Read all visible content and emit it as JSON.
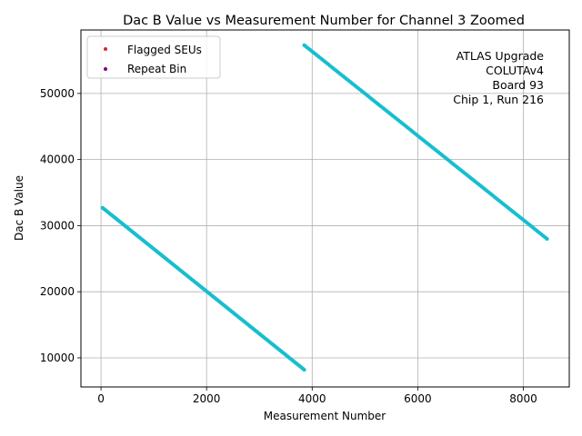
{
  "chart_data": {
    "type": "scatter",
    "title": "Dac B Value vs Measurement Number for Channel 3 Zoomed",
    "xlabel": "Measurement Number",
    "ylabel": "Dac B Value",
    "xlim": [
      -380,
      8870
    ],
    "ylim": [
      5600,
      59600
    ],
    "xticks": [
      0,
      2000,
      4000,
      6000,
      8000
    ],
    "yticks": [
      10000,
      20000,
      30000,
      40000,
      50000
    ],
    "grid": true,
    "legend_position": "top-left",
    "legend": [
      {
        "label": "Flagged SEUs",
        "color": "#d62728"
      },
      {
        "label": "Repeat Bin",
        "color": "#800080"
      }
    ],
    "annotation": [
      "ATLAS Upgrade",
      "COLUTAv4",
      "Board 93",
      "Chip 1, Run 216"
    ],
    "series": [
      {
        "color": "#17becf",
        "segments": [
          {
            "x": [
              30,
              3850
            ],
            "y": [
              32700,
              8200
            ]
          },
          {
            "x": [
              3850,
              8450
            ],
            "y": [
              57300,
              28000
            ]
          }
        ]
      }
    ]
  }
}
